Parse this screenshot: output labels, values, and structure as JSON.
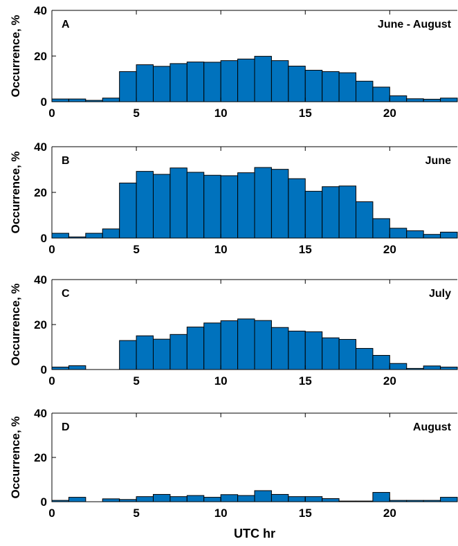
{
  "chart_data": [
    {
      "type": "bar",
      "panel_label": "A",
      "title": "June - August",
      "xlabel": "",
      "ylabel": "Occurrence, %",
      "xlim": [
        0,
        24
      ],
      "ylim": [
        0,
        40
      ],
      "xticks": [
        "0",
        "5",
        "10",
        "15",
        "20"
      ],
      "yticks": [
        "0",
        "20",
        "40"
      ],
      "bar_color": "#0072BD",
      "x": [
        0.5,
        1.5,
        2.5,
        3.5,
        4.5,
        5.5,
        6.5,
        7.5,
        8.5,
        9.5,
        10.5,
        11.5,
        12.5,
        13.5,
        14.5,
        15.5,
        16.5,
        17.5,
        18.5,
        19.5,
        20.5,
        21.5,
        22.5,
        23.5
      ],
      "values": [
        1.2,
        1.2,
        0.6,
        1.6,
        13.2,
        16.2,
        15.5,
        16.7,
        17.4,
        17.3,
        18.0,
        18.7,
        19.9,
        18.0,
        15.6,
        13.8,
        13.2,
        12.7,
        9.0,
        6.4,
        2.6,
        1.3,
        1.1,
        1.6
      ]
    },
    {
      "type": "bar",
      "panel_label": "B",
      "title": "June",
      "xlabel": "",
      "ylabel": "Occurrence, %",
      "xlim": [
        0,
        24
      ],
      "ylim": [
        0,
        40
      ],
      "xticks": [
        "0",
        "5",
        "10",
        "15",
        "20"
      ],
      "yticks": [
        "0",
        "20",
        "40"
      ],
      "bar_color": "#0072BD",
      "x": [
        0.5,
        1.5,
        2.5,
        3.5,
        4.5,
        5.5,
        6.5,
        7.5,
        8.5,
        9.5,
        10.5,
        11.5,
        12.5,
        13.5,
        14.5,
        15.5,
        16.5,
        17.5,
        18.5,
        19.5,
        20.5,
        21.5,
        22.5,
        23.5
      ],
      "values": [
        2.1,
        0.5,
        2.1,
        4.0,
        24.1,
        29.2,
        27.9,
        30.7,
        28.8,
        27.5,
        27.3,
        28.6,
        30.9,
        30.1,
        26.0,
        20.5,
        22.5,
        22.8,
        15.9,
        8.5,
        4.3,
        3.2,
        1.6,
        2.6
      ]
    },
    {
      "type": "bar",
      "panel_label": "C",
      "title": "July",
      "xlabel": "",
      "ylabel": "Occurrence, %",
      "xlim": [
        0,
        24
      ],
      "ylim": [
        0,
        40
      ],
      "xticks": [
        "0",
        "5",
        "10",
        "15",
        "20"
      ],
      "yticks": [
        "0",
        "20",
        "40"
      ],
      "bar_color": "#0072BD",
      "x": [
        0.5,
        1.5,
        2.5,
        3.5,
        4.5,
        5.5,
        6.5,
        7.5,
        8.5,
        9.5,
        10.5,
        11.5,
        12.5,
        13.5,
        14.5,
        15.5,
        16.5,
        17.5,
        18.5,
        19.5,
        20.5,
        21.5,
        22.5,
        23.5
      ],
      "values": [
        1.1,
        1.7,
        0.0,
        0.0,
        12.9,
        15.0,
        13.5,
        15.6,
        18.9,
        20.7,
        21.7,
        22.5,
        21.8,
        18.7,
        17.1,
        16.8,
        14.1,
        13.4,
        9.4,
        6.3,
        2.7,
        0.5,
        1.6,
        1.1
      ]
    },
    {
      "type": "bar",
      "panel_label": "D",
      "title": "August",
      "xlabel": "UTC hr",
      "ylabel": "Occurrence, %",
      "xlim": [
        0,
        24
      ],
      "ylim": [
        0,
        40
      ],
      "xticks": [
        "0",
        "5",
        "10",
        "15",
        "20"
      ],
      "yticks": [
        "0",
        "20",
        "40"
      ],
      "bar_color": "#0072BD",
      "x": [
        0.5,
        1.5,
        2.5,
        3.5,
        4.5,
        5.5,
        6.5,
        7.5,
        8.5,
        9.5,
        10.5,
        11.5,
        12.5,
        13.5,
        14.5,
        15.5,
        16.5,
        17.5,
        18.5,
        19.5,
        20.5,
        21.5,
        22.5,
        23.5
      ],
      "values": [
        0.6,
        2.0,
        0.0,
        1.3,
        1.0,
        2.3,
        3.3,
        2.3,
        2.8,
        2.0,
        3.2,
        2.8,
        5.0,
        3.3,
        2.3,
        2.3,
        1.4,
        0.3,
        0.3,
        4.2,
        0.6,
        0.6,
        0.6,
        2.0
      ]
    }
  ]
}
